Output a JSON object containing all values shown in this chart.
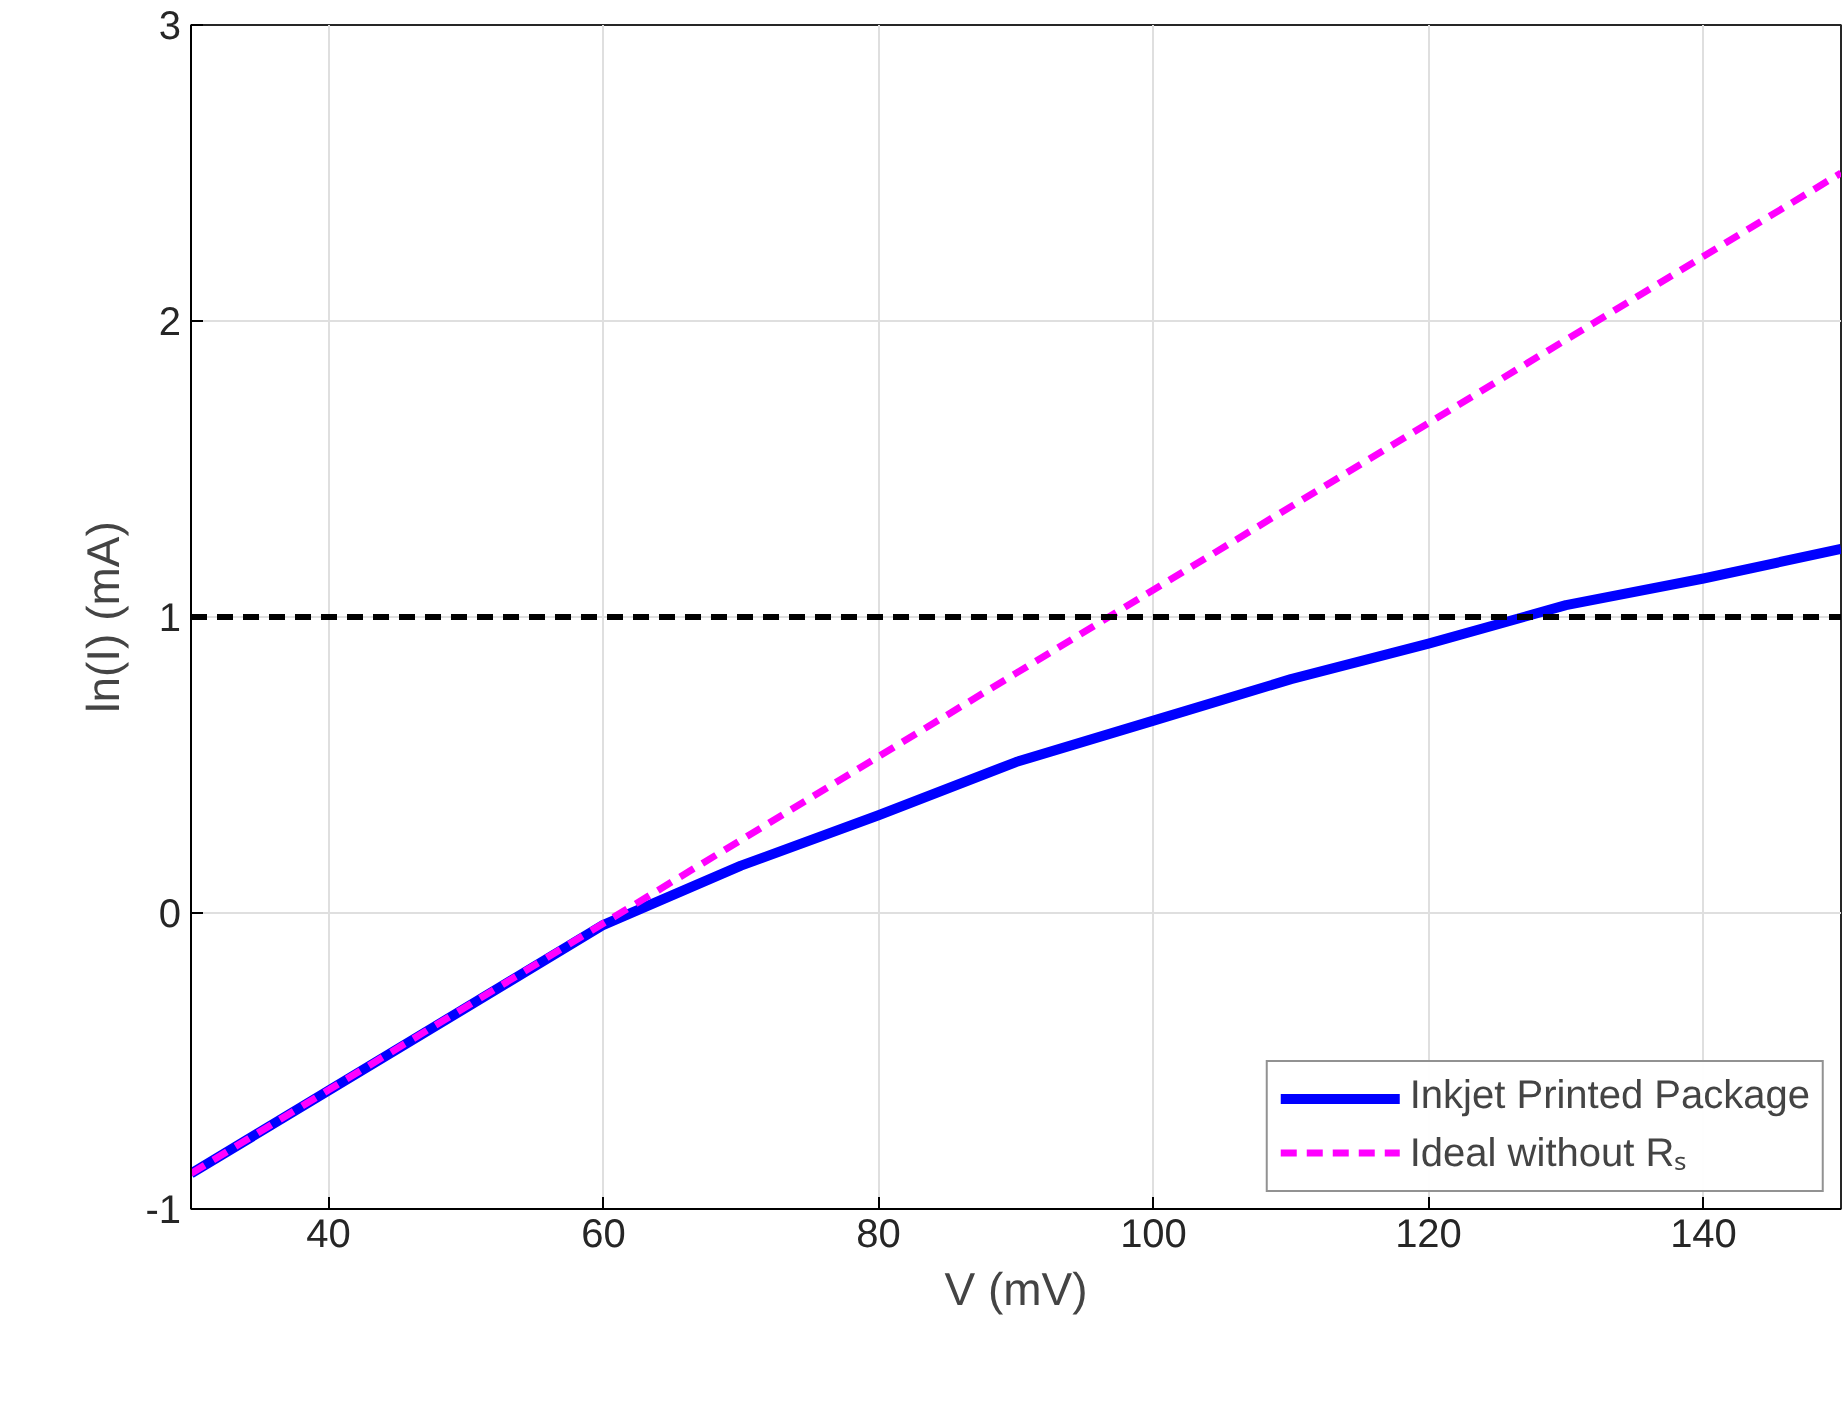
{
  "chart_data": {
    "type": "line",
    "xlabel": "V (mV)",
    "ylabel": "ln(I) (mA)",
    "xlim": [
      30,
      150
    ],
    "ylim": [
      -1,
      3
    ],
    "xticks": [
      40,
      60,
      80,
      100,
      120,
      140
    ],
    "yticks": [
      -1,
      0,
      1,
      2,
      3
    ],
    "grid": true,
    "legend": "bottom right",
    "series": [
      {
        "name": "Inkjet Printed Package",
        "color": "#0000ff",
        "line_style": "solid",
        "x": [
          30,
          60,
          70,
          80,
          90,
          100,
          110,
          120,
          130,
          140,
          150
        ],
        "values": [
          -0.88,
          -0.04,
          0.16,
          0.33,
          0.51,
          0.65,
          0.79,
          0.91,
          1.04,
          1.13,
          1.23
        ]
      },
      {
        "name": "Ideal without Rₛ",
        "color": "#ff00ff",
        "line_style": "dashed",
        "x": [
          30,
          150
        ],
        "values": [
          -0.88,
          2.5
        ]
      }
    ],
    "ref_lines": [
      {
        "axis": "y",
        "value": 1,
        "color": "#000000",
        "line_style": "dashed"
      }
    ]
  }
}
